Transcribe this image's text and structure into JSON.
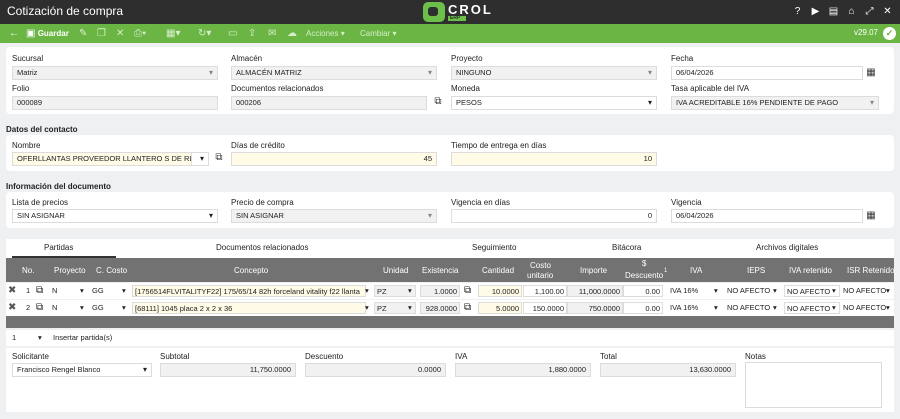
{
  "app": {
    "title": "Cotización de compra",
    "logo_main": "CROL",
    "logo_sub": "ERP",
    "version": "v29.07"
  },
  "toolbar": {
    "save": "Guardar",
    "actions": "Acciones",
    "change": "Cambiar"
  },
  "header": {
    "sucursal_label": "Sucursal",
    "sucursal_value": "Matriz",
    "almacen_label": "Almacén",
    "almacen_value": "ALMACÉN MATRIZ",
    "proyecto_label": "Proyecto",
    "proyecto_value": "NINGUNO",
    "fecha_label": "Fecha",
    "fecha_value": "06/04/2026",
    "folio_label": "Folio",
    "folio_value": "000089",
    "docs_label": "Documentos relacionados",
    "docs_value": "000206",
    "moneda_label": "Moneda",
    "moneda_value": "PESOS",
    "iva_label": "Tasa aplicable del IVA",
    "iva_value": "IVA ACREDITABLE 16% PENDIENTE DE PAGO"
  },
  "contacto": {
    "section": "Datos del contacto",
    "nombre_label": "Nombre",
    "nombre_value": "OFERLLANTAS PROVEEDOR LLANTERO S DE RL DE",
    "dias_label": "Días de crédito",
    "dias_value": "45",
    "tiempo_label": "Tiempo de entrega en días",
    "tiempo_value": "10"
  },
  "documento": {
    "section": "Información del documento",
    "lista_label": "Lista de precios",
    "lista_value": "SIN ASIGNAR",
    "precio_label": "Precio de compra",
    "precio_value": "SIN ASIGNAR",
    "vig_dias_label": "Vigencia en días",
    "vig_dias_value": "0",
    "vigencia_label": "Vigencia",
    "vigencia_value": "06/04/2026"
  },
  "tabs": [
    "Partidas",
    "Documentos relacionados",
    "Seguimiento",
    "Bitácora",
    "Archivos digitales"
  ],
  "columns": {
    "no": "No.",
    "proyecto": "Proyecto",
    "ccosto": "C. Costo",
    "concepto": "Concepto",
    "unidad": "Unidad",
    "existencia": "Existencia",
    "cantidad": "Cantidad",
    "costo1": "Costo",
    "costo2": "unitario",
    "importe": "Importe",
    "desc1": "$",
    "desc2": "Descuento",
    "desc_sup": "1",
    "iva": "IVA",
    "ieps": "IEPS",
    "iva_ret": "IVA retenido",
    "isr_ret": "ISR Retenido"
  },
  "rows": [
    {
      "no": "1",
      "proyecto": "N",
      "ccosto": "GG",
      "concepto": "[1756514FLVITALITYF22] 175/65/14 82h forceland vitality f22 llanta",
      "unidad": "PZ",
      "existencia": "1.0000",
      "cantidad": "10.0000",
      "costo": "1,100.00",
      "importe": "11,000.0000",
      "descuento": "0.00",
      "iva": "IVA 16%",
      "ieps": "NO AFECTO",
      "iva_ret": "NO AFECTO",
      "isr_ret": "NO AFECTO"
    },
    {
      "no": "2",
      "proyecto": "N",
      "ccosto": "GG",
      "concepto": "[68111] 1045 placa 2 x 2 x 36",
      "unidad": "PZ",
      "existencia": "928.0000",
      "cantidad": "5.0000",
      "costo": "150.0000",
      "importe": "750.0000",
      "descuento": "0.00",
      "iva": "IVA 16%",
      "ieps": "NO AFECTO",
      "iva_ret": "NO AFECTO",
      "isr_ret": "NO AFECTO"
    }
  ],
  "footer": {
    "page": "1",
    "insert": "Insertar partida(s)"
  },
  "totals": {
    "solicitante_label": "Solicitante",
    "solicitante_value": "Francisco  Rengel  Blanco",
    "subtotal_label": "Subtotal",
    "subtotal_value": "11,750.0000",
    "descuento_label": "Descuento",
    "descuento_value": "0.0000",
    "iva_label": "IVA",
    "iva_value": "1,880.0000",
    "total_label": "Total",
    "total_value": "13,630.0000",
    "notas_label": "Notas"
  }
}
